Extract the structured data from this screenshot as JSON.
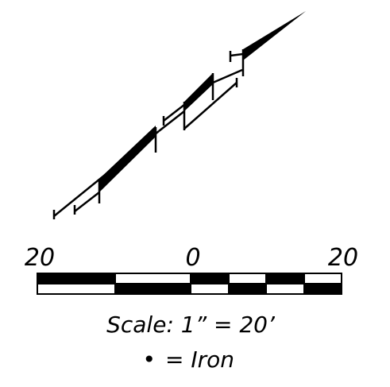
{
  "scale_bar": {
    "left_label": "20",
    "center_label": "0",
    "right_label": "20"
  },
  "scale_text": "Scale: 1” = 20’",
  "legend": {
    "symbol": "•",
    "text": "= Iron"
  }
}
